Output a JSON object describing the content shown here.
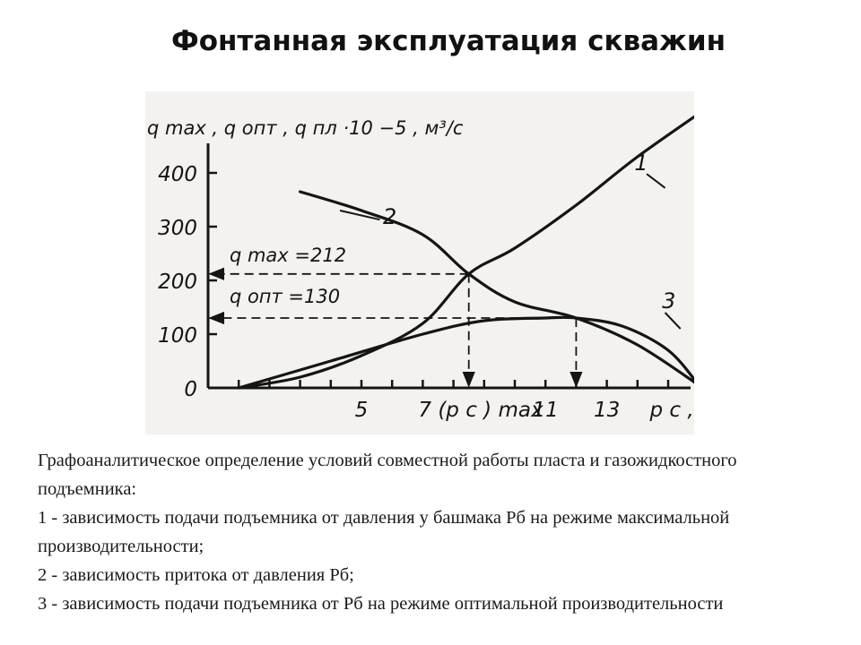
{
  "slide": {
    "title": "Фонтанная эксплуатация скважин"
  },
  "chart_data": {
    "type": "line",
    "ylabel": "q max , q опт , q пл ·10 −5 , м³/с",
    "xlabel": "p с , МПа",
    "x_ticks": [
      "5",
      "7 (p с ) max",
      "11",
      "13"
    ],
    "y_ticks": [
      "0",
      "100",
      "200",
      "300",
      "400"
    ],
    "xlim": [
      0,
      17
    ],
    "ylim": [
      0,
      450
    ],
    "series": [
      {
        "name": "1",
        "points": [
          [
            1,
            0
          ],
          [
            3,
            20
          ],
          [
            5,
            60
          ],
          [
            7,
            120
          ],
          [
            8.5,
            212
          ],
          [
            10,
            260
          ],
          [
            12,
            340
          ],
          [
            14,
            430
          ],
          [
            16.5,
            530
          ]
        ]
      },
      {
        "name": "2",
        "points": [
          [
            3,
            365
          ],
          [
            5,
            330
          ],
          [
            7,
            285
          ],
          [
            8.5,
            212
          ],
          [
            10,
            160
          ],
          [
            12,
            130
          ],
          [
            14,
            80
          ],
          [
            16,
            5
          ]
        ]
      },
      {
        "name": "3",
        "points": [
          [
            1,
            0
          ],
          [
            4,
            50
          ],
          [
            7,
            100
          ],
          [
            9,
            125
          ],
          [
            11,
            130
          ],
          [
            12,
            130
          ],
          [
            13.5,
            115
          ],
          [
            15,
            70
          ],
          [
            16,
            5
          ]
        ]
      }
    ],
    "annotations": [
      {
        "text": "q max =212",
        "value": 212
      },
      {
        "text": "q опт =130",
        "value": 130
      }
    ],
    "grid": false,
    "legend": "none"
  },
  "caption": {
    "lines": [
      "Графоаналитическое определение условий совместной работы пласта и газожидкостного подъемника:",
      "1 - зависимость подачи подъемника от давления у башмака Рб на режиме максимальной производительности;",
      "2 - зависимость притока от давления Рб;",
      "3 - зависимость подачи подъемника от Рб на режиме оптимальной производительности"
    ]
  }
}
